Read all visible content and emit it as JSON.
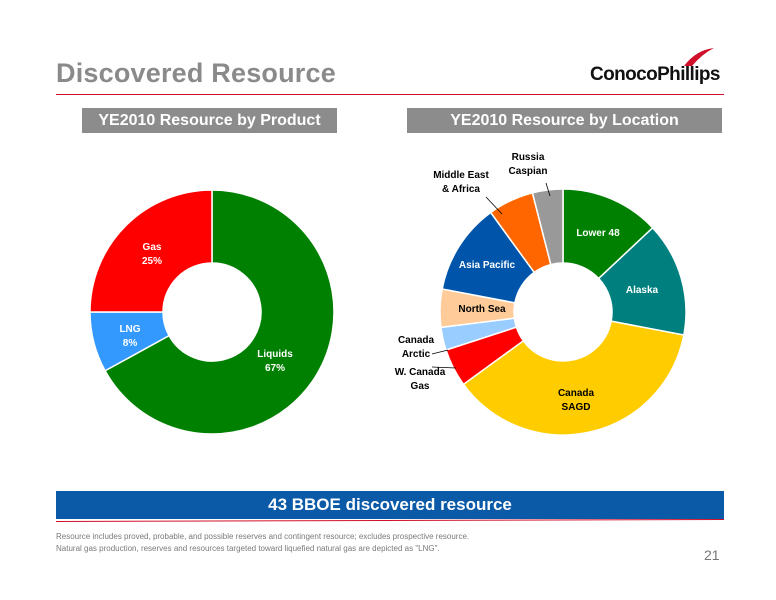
{
  "title": "Discovered Resource",
  "logo_text": "ConocoPhillips",
  "colors": {
    "accent_red": "#d0102a",
    "header_gray": "#8c8c8c",
    "banner_blue": "#0a5aa8"
  },
  "chart_data": [
    {
      "type": "pie",
      "style": "donut",
      "title": "YE2010 Resource by Product",
      "slices": [
        {
          "label_lines": [
            "Liquids",
            "67%"
          ],
          "value": 67,
          "color": "#008000"
        },
        {
          "label_lines": [
            "LNG",
            "8%"
          ],
          "value": 8,
          "color": "#3399ff"
        },
        {
          "label_lines": [
            "Gas",
            "25%"
          ],
          "value": 25,
          "color": "#ff0000"
        }
      ]
    },
    {
      "type": "pie",
      "style": "donut",
      "title": "YE2010 Resource by Location",
      "slices": [
        {
          "label_lines": [
            "Lower 48"
          ],
          "value": 13,
          "color": "#008000"
        },
        {
          "label_lines": [
            "Alaska"
          ],
          "value": 15,
          "color": "#007f7f"
        },
        {
          "label_lines": [
            "Canada",
            "SAGD"
          ],
          "value": 37,
          "color": "#ffcc00"
        },
        {
          "label_lines": [
            "W. Canada",
            "Gas"
          ],
          "value": 5,
          "color": "#ff0000"
        },
        {
          "label_lines": [
            "Canada",
            "Arctic"
          ],
          "value": 3,
          "color": "#99ccff"
        },
        {
          "label_lines": [
            "North Sea"
          ],
          "value": 5,
          "color": "#ffcc99"
        },
        {
          "label_lines": [
            "Asia Pacific"
          ],
          "value": 12,
          "color": "#0055aa"
        },
        {
          "label_lines": [
            "Middle East",
            "& Africa"
          ],
          "value": 6,
          "color": "#ff6600"
        },
        {
          "label_lines": [
            "Russia",
            "Caspian"
          ],
          "value": 4,
          "color": "#999999"
        }
      ]
    }
  ],
  "banner": "43 BBOE discovered resource",
  "notes": [
    "Resource includes proved, probable, and possible reserves and contingent resource; excludes prospective resource.",
    "Natural gas production, reserves and resources targeted toward liquefied natural gas are depicted as \"LNG\"."
  ],
  "page_number": "21"
}
